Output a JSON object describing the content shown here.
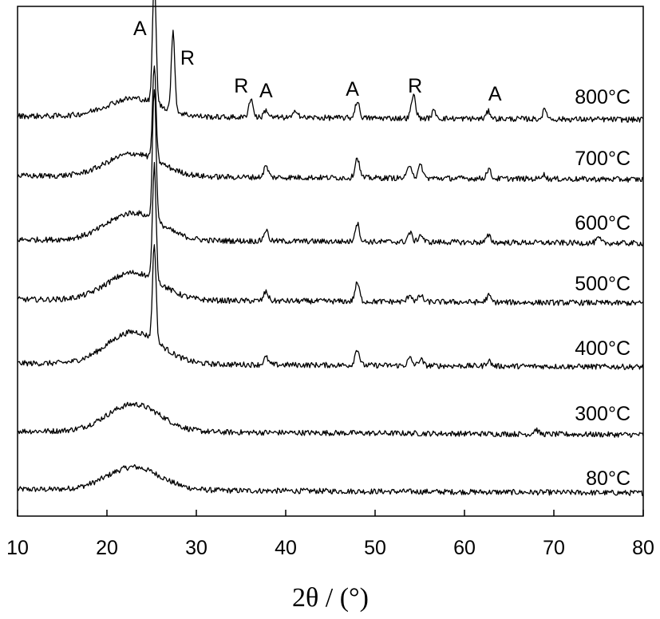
{
  "chart_data": {
    "type": "line",
    "xlabel": "2θ / (°)",
    "xlim": [
      10,
      80
    ],
    "x_ticks": [
      10,
      20,
      30,
      40,
      50,
      60,
      70,
      80
    ],
    "y_ticks_shown": false,
    "grid": false,
    "legend": "none",
    "line_color": "#000000",
    "series": [
      {
        "name": "80°C",
        "baseline": 0.0,
        "hump": 0.25,
        "peaks": []
      },
      {
        "name": "300°C",
        "baseline": 1.0,
        "hump": 0.3,
        "peaks": [
          [
            68,
            0.05
          ]
        ]
      },
      {
        "name": "400°C",
        "baseline": 2.0,
        "hump": 0.35,
        "peaks": [
          [
            25.3,
            1.05
          ],
          [
            37.8,
            0.08
          ],
          [
            48.0,
            0.18
          ],
          [
            53.9,
            0.08
          ],
          [
            55.1,
            0.07
          ],
          [
            62.7,
            0.06
          ]
        ]
      },
      {
        "name": "500°C",
        "baseline": 3.0,
        "hump": 0.3,
        "peaks": [
          [
            25.3,
            1.25
          ],
          [
            37.8,
            0.1
          ],
          [
            48.0,
            0.2
          ],
          [
            53.9,
            0.08
          ],
          [
            55.1,
            0.07
          ],
          [
            62.7,
            0.07
          ]
        ]
      },
      {
        "name": "600°C",
        "baseline": 4.0,
        "hump": 0.3,
        "peaks": [
          [
            25.3,
            1.45
          ],
          [
            37.8,
            0.12
          ],
          [
            48.0,
            0.2
          ],
          [
            53.9,
            0.1
          ],
          [
            55.1,
            0.08
          ],
          [
            62.7,
            0.07
          ],
          [
            75.0,
            0.05
          ]
        ]
      },
      {
        "name": "700°C",
        "baseline": 5.0,
        "hump": 0.25,
        "peaks": [
          [
            25.3,
            1.0
          ],
          [
            37.8,
            0.12
          ],
          [
            48.0,
            0.22
          ],
          [
            53.9,
            0.15
          ],
          [
            55.1,
            0.14
          ],
          [
            62.7,
            0.1
          ],
          [
            68.8,
            0.05
          ]
        ]
      },
      {
        "name": "800°C",
        "baseline": 6.0,
        "hump": 0.2,
        "peaks": [
          [
            25.3,
            1.35
          ],
          [
            27.4,
            0.85
          ],
          [
            36.1,
            0.2
          ],
          [
            37.8,
            0.08
          ],
          [
            41.2,
            0.08
          ],
          [
            48.0,
            0.18
          ],
          [
            54.3,
            0.25
          ],
          [
            56.6,
            0.08
          ],
          [
            62.7,
            0.08
          ],
          [
            69.0,
            0.1
          ]
        ]
      }
    ],
    "annotations": [
      {
        "text": "A",
        "x": 25.3,
        "series": "800°C"
      },
      {
        "text": "R",
        "x": 27.4,
        "series": "800°C"
      },
      {
        "text": "R",
        "x": 36.1,
        "series": "800°C"
      },
      {
        "text": "A",
        "x": 37.8,
        "series": "800°C"
      },
      {
        "text": "A",
        "x": 48.0,
        "series": "800°C"
      },
      {
        "text": "R",
        "x": 54.3,
        "series": "800°C"
      },
      {
        "text": "A",
        "x": 62.7,
        "series": "800°C"
      }
    ]
  }
}
